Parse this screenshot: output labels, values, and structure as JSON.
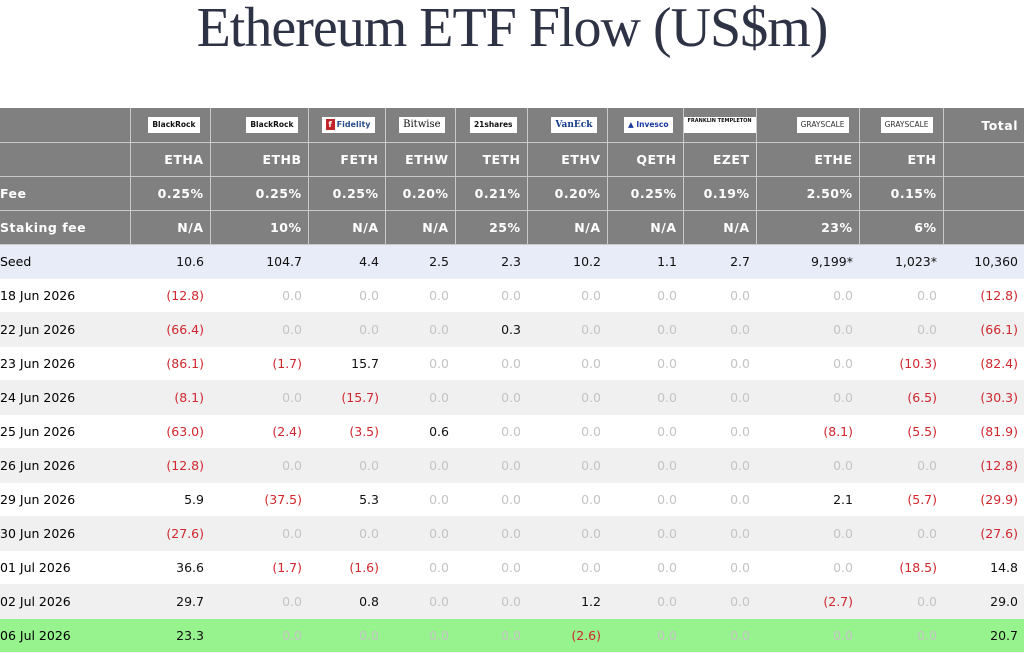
{
  "title": "Ethereum ETF Flow (US$m)",
  "colors": {
    "header_bg": "#808080",
    "seed_bg": "#e8ecf8",
    "alt_bg": "#f0f0f0",
    "highlight_bg": "#97f38e",
    "negative": "#d0272e",
    "zero": "#c4c4c4"
  },
  "header": {
    "logos": [
      "BlackRock",
      "BlackRock",
      "Fidelity",
      "Bitwise",
      "21shares",
      "VanEck",
      "Invesco",
      "FRANKLIN TEMPLETON",
      "GRAYSCALE",
      "GRAYSCALE"
    ],
    "total_label": "Total",
    "tickers": [
      "ETHA",
      "ETHB",
      "FETH",
      "ETHW",
      "TETH",
      "ETHV",
      "QETH",
      "EZET",
      "ETHE",
      "ETH"
    ],
    "fee_label": "Fee",
    "fees": [
      "0.25%",
      "0.25%",
      "0.25%",
      "0.20%",
      "0.21%",
      "0.20%",
      "0.25%",
      "0.19%",
      "2.50%",
      "0.15%"
    ],
    "staking_label": "Staking fee",
    "staking_fees": [
      "N/A",
      "10%",
      "N/A",
      "N/A",
      "25%",
      "N/A",
      "N/A",
      "N/A",
      "23%",
      "6%"
    ]
  },
  "rows": [
    {
      "date": "Seed",
      "values": [
        "10.6",
        "104.7",
        "4.4",
        "2.5",
        "2.3",
        "10.2",
        "1.1",
        "2.7",
        "9,199*",
        "1,023*"
      ],
      "total": "10,360"
    },
    {
      "date": "18 Jun 2026",
      "values": [
        "(12.8)",
        "0.0",
        "0.0",
        "0.0",
        "0.0",
        "0.0",
        "0.0",
        "0.0",
        "0.0",
        "0.0"
      ],
      "total": "(12.8)"
    },
    {
      "date": "22 Jun 2026",
      "values": [
        "(66.4)",
        "0.0",
        "0.0",
        "0.0",
        "0.3",
        "0.0",
        "0.0",
        "0.0",
        "0.0",
        "0.0"
      ],
      "total": "(66.1)"
    },
    {
      "date": "23 Jun 2026",
      "values": [
        "(86.1)",
        "(1.7)",
        "15.7",
        "0.0",
        "0.0",
        "0.0",
        "0.0",
        "0.0",
        "0.0",
        "(10.3)"
      ],
      "total": "(82.4)"
    },
    {
      "date": "24 Jun 2026",
      "values": [
        "(8.1)",
        "0.0",
        "(15.7)",
        "0.0",
        "0.0",
        "0.0",
        "0.0",
        "0.0",
        "0.0",
        "(6.5)"
      ],
      "total": "(30.3)"
    },
    {
      "date": "25 Jun 2026",
      "values": [
        "(63.0)",
        "(2.4)",
        "(3.5)",
        "0.6",
        "0.0",
        "0.0",
        "0.0",
        "0.0",
        "(8.1)",
        "(5.5)"
      ],
      "total": "(81.9)"
    },
    {
      "date": "26 Jun 2026",
      "values": [
        "(12.8)",
        "0.0",
        "0.0",
        "0.0",
        "0.0",
        "0.0",
        "0.0",
        "0.0",
        "0.0",
        "0.0"
      ],
      "total": "(12.8)"
    },
    {
      "date": "29 Jun 2026",
      "values": [
        "5.9",
        "(37.5)",
        "5.3",
        "0.0",
        "0.0",
        "0.0",
        "0.0",
        "0.0",
        "2.1",
        "(5.7)"
      ],
      "total": "(29.9)"
    },
    {
      "date": "30 Jun 2026",
      "values": [
        "(27.6)",
        "0.0",
        "0.0",
        "0.0",
        "0.0",
        "0.0",
        "0.0",
        "0.0",
        "0.0",
        "0.0"
      ],
      "total": "(27.6)"
    },
    {
      "date": "01 Jul 2026",
      "values": [
        "36.6",
        "(1.7)",
        "(1.6)",
        "0.0",
        "0.0",
        "0.0",
        "0.0",
        "0.0",
        "0.0",
        "(18.5)"
      ],
      "total": "14.8"
    },
    {
      "date": "02 Jul 2026",
      "values": [
        "29.7",
        "0.0",
        "0.8",
        "0.0",
        "0.0",
        "1.2",
        "0.0",
        "0.0",
        "(2.7)",
        "0.0"
      ],
      "total": "29.0"
    },
    {
      "date": "06 Jul 2026",
      "values": [
        "23.3",
        "0.0",
        "0.0",
        "0.0",
        "0.0",
        "(2.6)",
        "0.0",
        "0.0",
        "0.0",
        "0.0"
      ],
      "total": "20.7"
    }
  ]
}
